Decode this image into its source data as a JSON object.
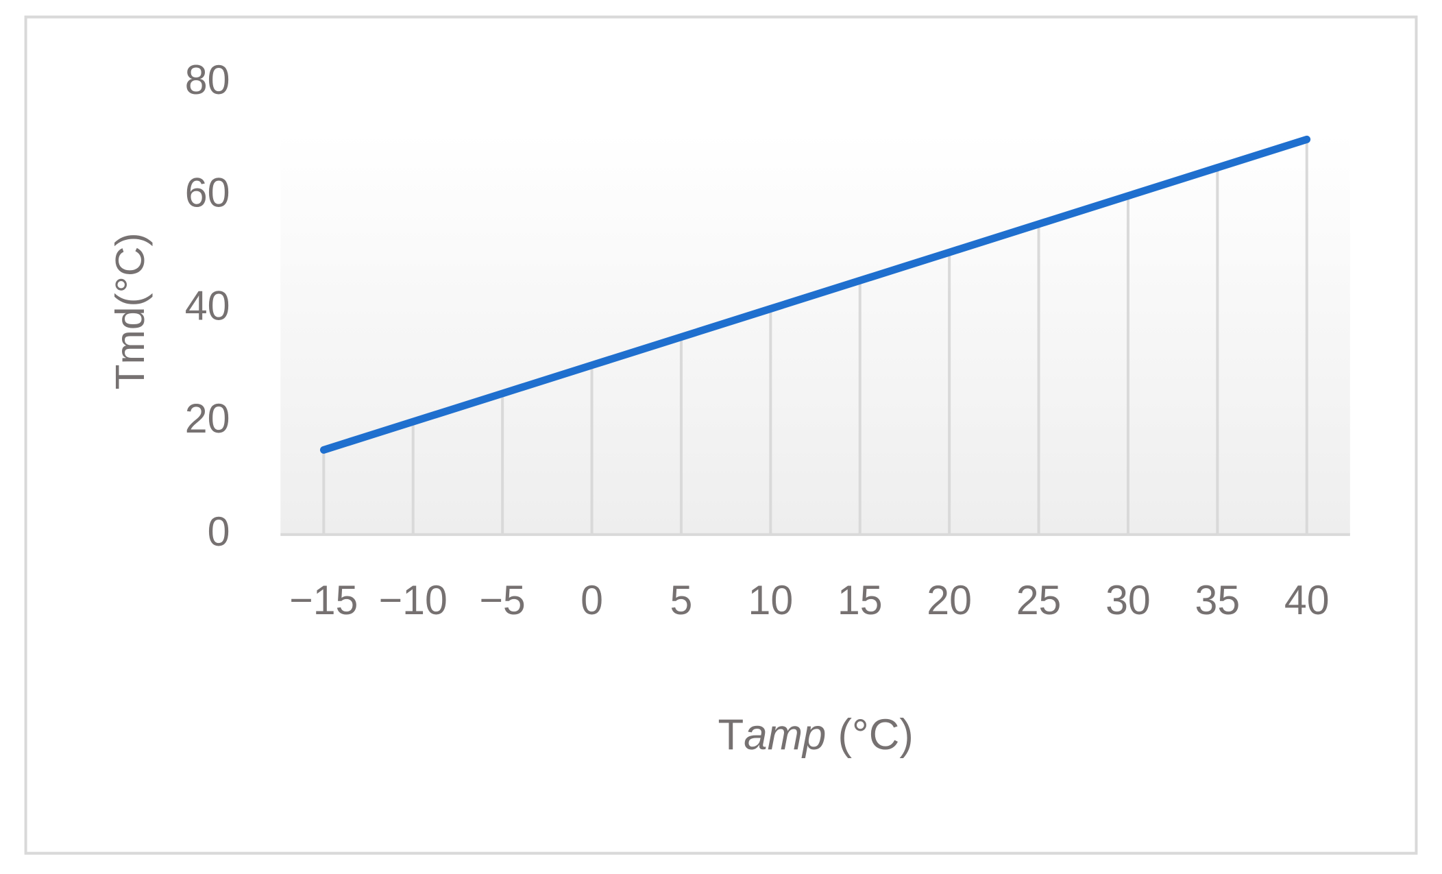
{
  "chart_data": {
    "type": "line",
    "categories": [
      "−15",
      "−10",
      "−5",
      "0",
      "5",
      "10",
      "15",
      "20",
      "25",
      "30",
      "35",
      "40"
    ],
    "values": [
      15,
      20,
      25,
      30,
      35,
      40,
      45,
      50,
      55,
      60,
      65,
      70
    ],
    "color": "#1f6fce",
    "ylim": [
      0,
      80
    ],
    "yticks": [
      0,
      20,
      40,
      60,
      80
    ],
    "ylabel": "Tmd(°C)",
    "xlabel": [
      "T",
      "amp",
      " (°C)"
    ],
    "drop_lines": true
  }
}
